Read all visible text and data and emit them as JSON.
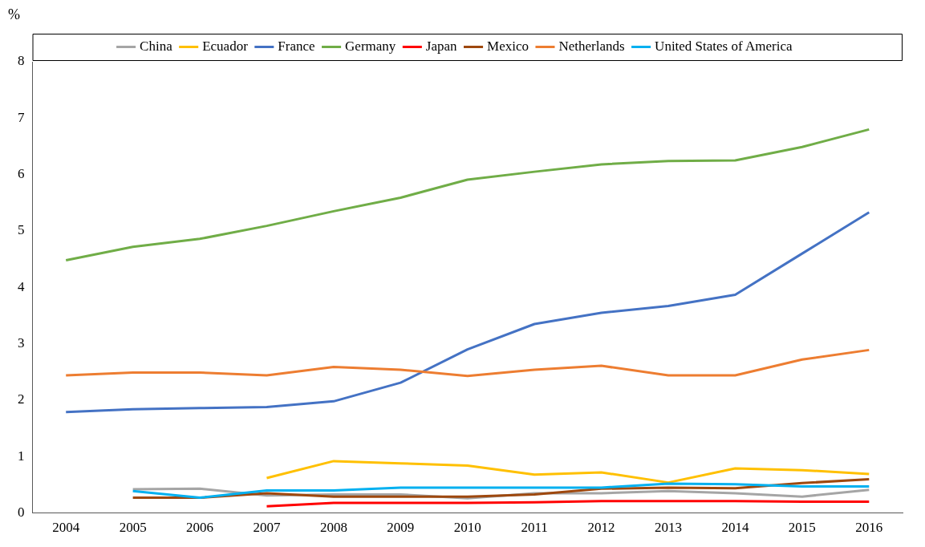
{
  "chart_data": {
    "type": "line",
    "ylabel": "%",
    "categories": [
      "2004",
      "2005",
      "2006",
      "2007",
      "2008",
      "2009",
      "2010",
      "2011",
      "2012",
      "2013",
      "2014",
      "2015",
      "2016"
    ],
    "series": [
      {
        "name": "China",
        "color": "#a5a5a5",
        "values": [
          null,
          0.42,
          0.43,
          0.31,
          0.33,
          0.33,
          0.26,
          0.35,
          0.35,
          0.39,
          0.35,
          0.29,
          0.41
        ]
      },
      {
        "name": "Ecuador",
        "color": "#ffc000",
        "values": [
          null,
          null,
          null,
          0.62,
          0.92,
          0.88,
          0.84,
          0.68,
          0.72,
          0.54,
          0.79,
          0.76,
          0.69
        ]
      },
      {
        "name": "France",
        "color": "#4472c4",
        "values": [
          1.79,
          1.84,
          1.86,
          1.88,
          1.98,
          2.31,
          2.9,
          3.35,
          3.55,
          3.67,
          3.87,
          4.6,
          5.33
        ]
      },
      {
        "name": "Germany",
        "color": "#70ad47",
        "values": [
          4.48,
          4.72,
          4.86,
          5.09,
          5.35,
          5.59,
          5.91,
          6.05,
          6.18,
          6.24,
          6.25,
          6.49,
          6.8
        ]
      },
      {
        "name": "Japan",
        "color": "#ff0000",
        "values": [
          null,
          null,
          null,
          0.12,
          0.18,
          0.18,
          0.18,
          0.19,
          0.21,
          0.21,
          0.21,
          0.2,
          0.2
        ]
      },
      {
        "name": "Mexico",
        "color": "#9e480e",
        "values": [
          null,
          0.27,
          0.27,
          0.35,
          0.29,
          0.29,
          0.29,
          0.33,
          0.43,
          0.45,
          0.44,
          0.53,
          0.6
        ]
      },
      {
        "name": "Netherlands",
        "color": "#ed7d31",
        "values": [
          2.44,
          2.49,
          2.49,
          2.44,
          2.59,
          2.54,
          2.43,
          2.54,
          2.61,
          2.44,
          2.44,
          2.72,
          2.89
        ]
      },
      {
        "name": "United States of America",
        "color": "#00b0f0",
        "values": [
          null,
          0.39,
          0.27,
          0.4,
          0.4,
          0.45,
          0.45,
          0.45,
          0.45,
          0.52,
          0.51,
          0.47,
          0.47
        ]
      }
    ],
    "ylim": [
      0,
      8
    ],
    "yticks": [
      0,
      1,
      2,
      3,
      4,
      5,
      6,
      7,
      8
    ],
    "grid": false,
    "legend": "top",
    "marker": "none",
    "line_style": "solid"
  }
}
